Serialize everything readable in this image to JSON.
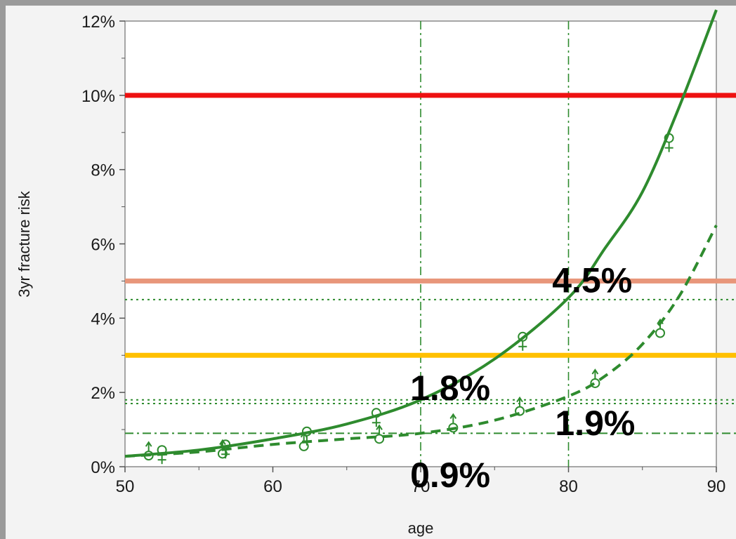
{
  "chart_data": {
    "type": "line",
    "title": "",
    "xlabel": "age",
    "ylabel": "3yr fracture risk",
    "xlim": [
      50,
      90
    ],
    "ylim": [
      0,
      12
    ],
    "x_ticks": [
      50,
      60,
      70,
      80,
      90
    ],
    "x_tick_labels": [
      "50",
      "60",
      "70",
      "80",
      "90"
    ],
    "y_ticks": [
      0,
      2,
      4,
      6,
      8,
      10,
      12
    ],
    "y_tick_labels": [
      "0%",
      "2%",
      "4%",
      "6%",
      "8%",
      "10%",
      "12%"
    ],
    "grid": false,
    "legend": "none",
    "series": [
      {
        "style": "solid",
        "color": "#2e8b2e",
        "x": [
          50,
          55,
          60,
          65,
          70,
          75,
          80,
          82.5,
          85,
          87.5,
          90
        ],
        "y": [
          0.28,
          0.45,
          0.75,
          1.15,
          1.8,
          2.9,
          4.55,
          5.9,
          7.4,
          9.7,
          12.3
        ]
      },
      {
        "style": "dashed",
        "color": "#2e8b2e",
        "x": [
          50,
          55,
          60,
          65,
          70,
          75,
          80,
          82.5,
          85,
          87.5,
          90
        ],
        "y": [
          0.28,
          0.4,
          0.6,
          0.75,
          0.9,
          1.25,
          1.9,
          2.45,
          3.3,
          4.6,
          6.5
        ]
      }
    ],
    "points_female": [
      {
        "x": 52.5,
        "y": 0.45
      },
      {
        "x": 56.8,
        "y": 0.6
      },
      {
        "x": 62.3,
        "y": 0.95
      },
      {
        "x": 67,
        "y": 1.45
      },
      {
        "x": 76.9,
        "y": 3.5
      },
      {
        "x": 86.8,
        "y": 8.85
      }
    ],
    "points_male": [
      {
        "x": 51.6,
        "y": 0.3
      },
      {
        "x": 56.6,
        "y": 0.35
      },
      {
        "x": 62.1,
        "y": 0.55
      },
      {
        "x": 67.2,
        "y": 0.75
      },
      {
        "x": 72.2,
        "y": 1.05
      },
      {
        "x": 76.7,
        "y": 1.5
      },
      {
        "x": 81.8,
        "y": 2.25
      },
      {
        "x": 86.2,
        "y": 3.6
      }
    ],
    "threshold_lines": [
      {
        "y": 10,
        "color": "#ee1111"
      },
      {
        "y": 5,
        "color": "#e8967a"
      },
      {
        "y": 3,
        "color": "#ffc000"
      }
    ],
    "reference_lines_h": [
      {
        "y": 4.5,
        "style": "dotted"
      },
      {
        "y": 1.8,
        "style": "dotted"
      },
      {
        "y": 1.8,
        "style": "dotted",
        "offset": -0.1
      },
      {
        "y": 0.9,
        "style": "dashdot"
      }
    ],
    "reference_lines_v": [
      {
        "x": 70,
        "style": "dashdot"
      },
      {
        "x": 80,
        "style": "dashdot"
      }
    ],
    "annotations": [
      {
        "text": "4.5%",
        "x": 81.6,
        "y": 4.7
      },
      {
        "text": "1.8%",
        "x": 72.0,
        "y": 1.8
      },
      {
        "text": "1.9%",
        "x": 81.8,
        "y": 0.85
      },
      {
        "text": "0.9%",
        "x": 72.0,
        "y": -0.55
      }
    ]
  }
}
